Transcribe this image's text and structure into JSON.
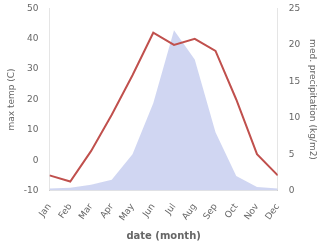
{
  "chart_data": {
    "type": "line",
    "xlabel": "date (month)",
    "ylabel": "max temp (C)",
    "y2label": "med. precipitation (kg/m2)",
    "categories": [
      "Jan",
      "Feb",
      "Mar",
      "Apr",
      "May",
      "Jun",
      "Jul",
      "Aug",
      "Sep",
      "Oct",
      "Nov",
      "Dec"
    ],
    "series": [
      {
        "type": "area",
        "color": "#aab4e8",
        "axis": "y2",
        "values": [
          0.3,
          0.4,
          0.8,
          1.5,
          5,
          12,
          22,
          18,
          8,
          2.0,
          0.5,
          0.3
        ]
      },
      {
        "type": "line",
        "color": "#c0504d",
        "values": [
          -5,
          -7,
          3,
          15,
          28,
          42,
          38,
          40,
          36,
          20,
          2,
          -5
        ]
      }
    ],
    "ylim": [
      -10,
      50
    ],
    "yticks": [
      -10,
      0,
      10,
      20,
      30,
      40,
      50
    ],
    "y2lim": [
      0,
      25
    ],
    "y2ticks": [
      0,
      5,
      10,
      15,
      20,
      25
    ],
    "grid": false
  }
}
